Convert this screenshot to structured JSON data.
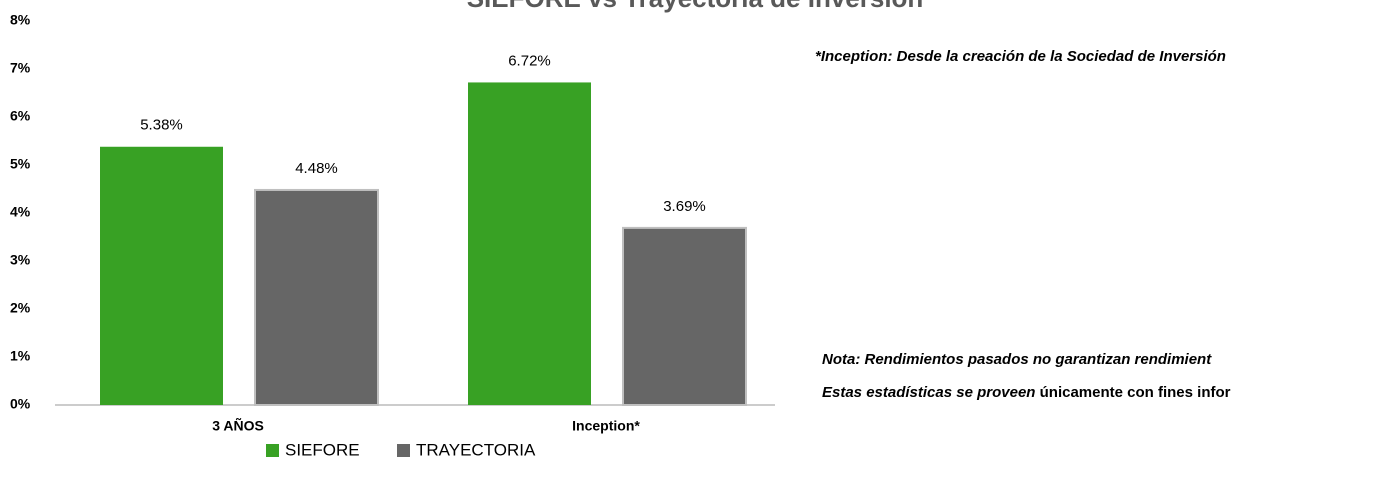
{
  "chart_data": {
    "type": "bar",
    "title": "SIEFORE vs Trayectoria de Inversión",
    "categories": [
      "3 AÑOS",
      "Inception*"
    ],
    "series": [
      {
        "name": "SIEFORE",
        "color": "#38a124",
        "values": [
          5.38,
          6.72
        ],
        "value_labels": [
          "5.38%",
          "6.72%"
        ]
      },
      {
        "name": "TRAYECTORIA",
        "color": "#666666",
        "values": [
          4.48,
          3.69
        ],
        "value_labels": [
          "4.48%",
          "3.69%"
        ]
      }
    ],
    "ylim": [
      0,
      8
    ],
    "yticks": [
      {
        "value": 0,
        "label": "0%"
      },
      {
        "value": 1,
        "label": "1%"
      },
      {
        "value": 2,
        "label": "2%"
      },
      {
        "value": 3,
        "label": "3%"
      },
      {
        "value": 4,
        "label": "4%"
      },
      {
        "value": 5,
        "label": "5%"
      },
      {
        "value": 6,
        "label": "6%"
      },
      {
        "value": 7,
        "label": "7%"
      },
      {
        "value": 8,
        "label": "8%"
      }
    ],
    "grid": false,
    "legend": "bottom",
    "annotations": [
      "*Inception: Desde la creación de la Sociedad de Inversión",
      "Nota: Rendimientos pasados no garantizan rendimient",
      "Estas estadísticas se proveen",
      "únicamente con fines infor"
    ]
  }
}
